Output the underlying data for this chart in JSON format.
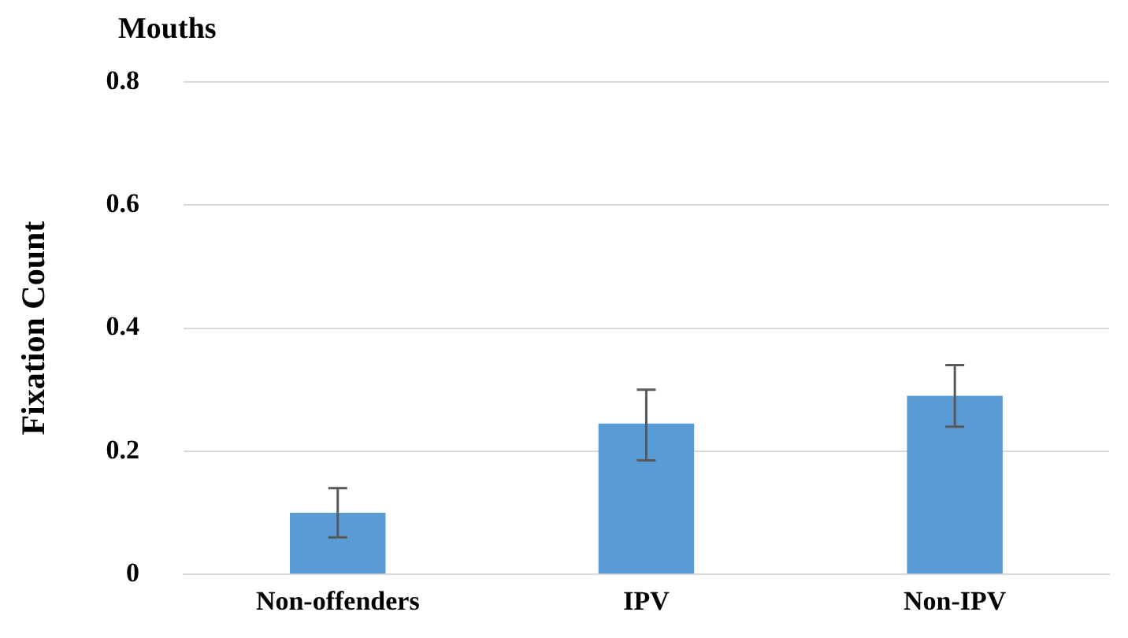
{
  "chart_data": {
    "type": "bar",
    "title": "Mouths",
    "ylabel": "Fixation Count",
    "categories": [
      "Non-offenders",
      "IPV",
      "Non-IPV"
    ],
    "values": [
      0.1,
      0.245,
      0.29
    ],
    "errors": [
      [
        0.06,
        0.14
      ],
      [
        0.185,
        0.3
      ],
      [
        0.24,
        0.34
      ]
    ],
    "color": "#5b9bd5",
    "ylim": [
      0,
      0.8
    ],
    "yticks": [
      {
        "value": 0,
        "label": "0"
      },
      0.2,
      0.4,
      0.6,
      0.8
    ],
    "grid": "y",
    "legend": false
  }
}
